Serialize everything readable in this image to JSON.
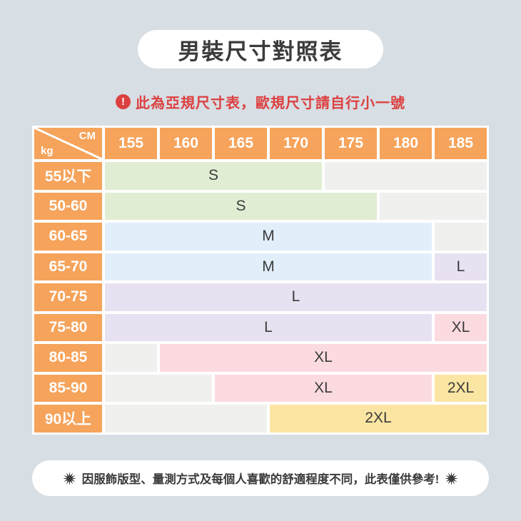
{
  "page": {
    "background": "#D7DEE4"
  },
  "title": "男裝尺寸對照表",
  "warning": {
    "icon": "exclamation-circle-icon",
    "icon_glyph": "!",
    "text": "此為亞規尺寸表，歐規尺寸請自行小一號",
    "color": "#DC4040"
  },
  "table": {
    "corner": {
      "top": "CM",
      "bottom": "kg"
    },
    "columns": [
      "155",
      "160",
      "165",
      "170",
      "175",
      "180",
      "185"
    ],
    "rows": [
      {
        "label": "55以下",
        "segments": [
          {
            "size": "S",
            "span": 4,
            "color": "green"
          },
          {
            "size": "",
            "span": 3,
            "color": "empty"
          }
        ]
      },
      {
        "label": "50-60",
        "segments": [
          {
            "size": "S",
            "span": 5,
            "color": "green"
          },
          {
            "size": "",
            "span": 2,
            "color": "empty"
          }
        ]
      },
      {
        "label": "60-65",
        "segments": [
          {
            "size": "M",
            "span": 6,
            "color": "blue"
          },
          {
            "size": "",
            "span": 1,
            "color": "empty"
          }
        ]
      },
      {
        "label": "65-70",
        "segments": [
          {
            "size": "M",
            "span": 6,
            "color": "blue"
          },
          {
            "size": "L",
            "span": 1,
            "color": "lavender"
          }
        ]
      },
      {
        "label": "70-75",
        "segments": [
          {
            "size": "L",
            "span": 7,
            "color": "lavender"
          }
        ]
      },
      {
        "label": "75-80",
        "segments": [
          {
            "size": "L",
            "span": 6,
            "color": "lavender"
          },
          {
            "size": "XL",
            "span": 1,
            "color": "pink"
          }
        ]
      },
      {
        "label": "80-85",
        "segments": [
          {
            "size": "",
            "span": 1,
            "color": "empty"
          },
          {
            "size": "XL",
            "span": 6,
            "color": "pink"
          }
        ]
      },
      {
        "label": "85-90",
        "segments": [
          {
            "size": "",
            "span": 2,
            "color": "empty"
          },
          {
            "size": "XL",
            "span": 4,
            "color": "pink"
          },
          {
            "size": "2XL",
            "span": 1,
            "color": "yellow"
          }
        ]
      },
      {
        "label": "90以上",
        "segments": [
          {
            "size": "",
            "span": 3,
            "color": "empty"
          },
          {
            "size": "2XL",
            "span": 4,
            "color": "yellow"
          }
        ]
      }
    ],
    "size_colors": {
      "green": "#E0EDD2",
      "blue": "#E2EFFB",
      "lavender": "#E8E1F1",
      "pink": "#FBDBE0",
      "yellow": "#FAE5A3",
      "empty": "#F0F0EE"
    },
    "header_color": "#F6A35B"
  },
  "footer": {
    "icon": "starburst-icon",
    "text": "因服飾版型、量測方式及每個人喜歡的舒適程度不同，此表僅供參考!"
  },
  "chart_data": {
    "type": "table",
    "title": "男裝尺寸對照表",
    "note_top": "此為亞規尺寸表，歐規尺寸請自行小一號",
    "note_bottom": "因服飾版型、量測方式及每個人喜歡的舒適程度不同，此表僅供參考!",
    "x_axis_label": "CM",
    "y_axis_label": "kg",
    "height_columns_cm": [
      155,
      160,
      165,
      170,
      175,
      180,
      185
    ],
    "weight_rows_kg": [
      "55以下",
      "50-60",
      "60-65",
      "65-70",
      "70-75",
      "75-80",
      "80-85",
      "85-90",
      "90以上"
    ],
    "cells": [
      [
        "S",
        "S",
        "S",
        "S",
        "",
        "",
        ""
      ],
      [
        "S",
        "S",
        "S",
        "S",
        "S",
        "",
        ""
      ],
      [
        "M",
        "M",
        "M",
        "M",
        "M",
        "M",
        ""
      ],
      [
        "M",
        "M",
        "M",
        "M",
        "M",
        "M",
        "L"
      ],
      [
        "L",
        "L",
        "L",
        "L",
        "L",
        "L",
        "L"
      ],
      [
        "L",
        "L",
        "L",
        "L",
        "L",
        "L",
        "XL"
      ],
      [
        "",
        "XL",
        "XL",
        "XL",
        "XL",
        "XL",
        "XL"
      ],
      [
        "",
        "",
        "XL",
        "XL",
        "XL",
        "XL",
        "2XL"
      ],
      [
        "",
        "",
        "",
        "2XL",
        "2XL",
        "2XL",
        "2XL"
      ]
    ],
    "size_legend_colors": {
      "S": "#E0EDD2",
      "M": "#E2EFFB",
      "L": "#E8E1F1",
      "XL": "#FBDBE0",
      "2XL": "#FAE5A3"
    }
  }
}
